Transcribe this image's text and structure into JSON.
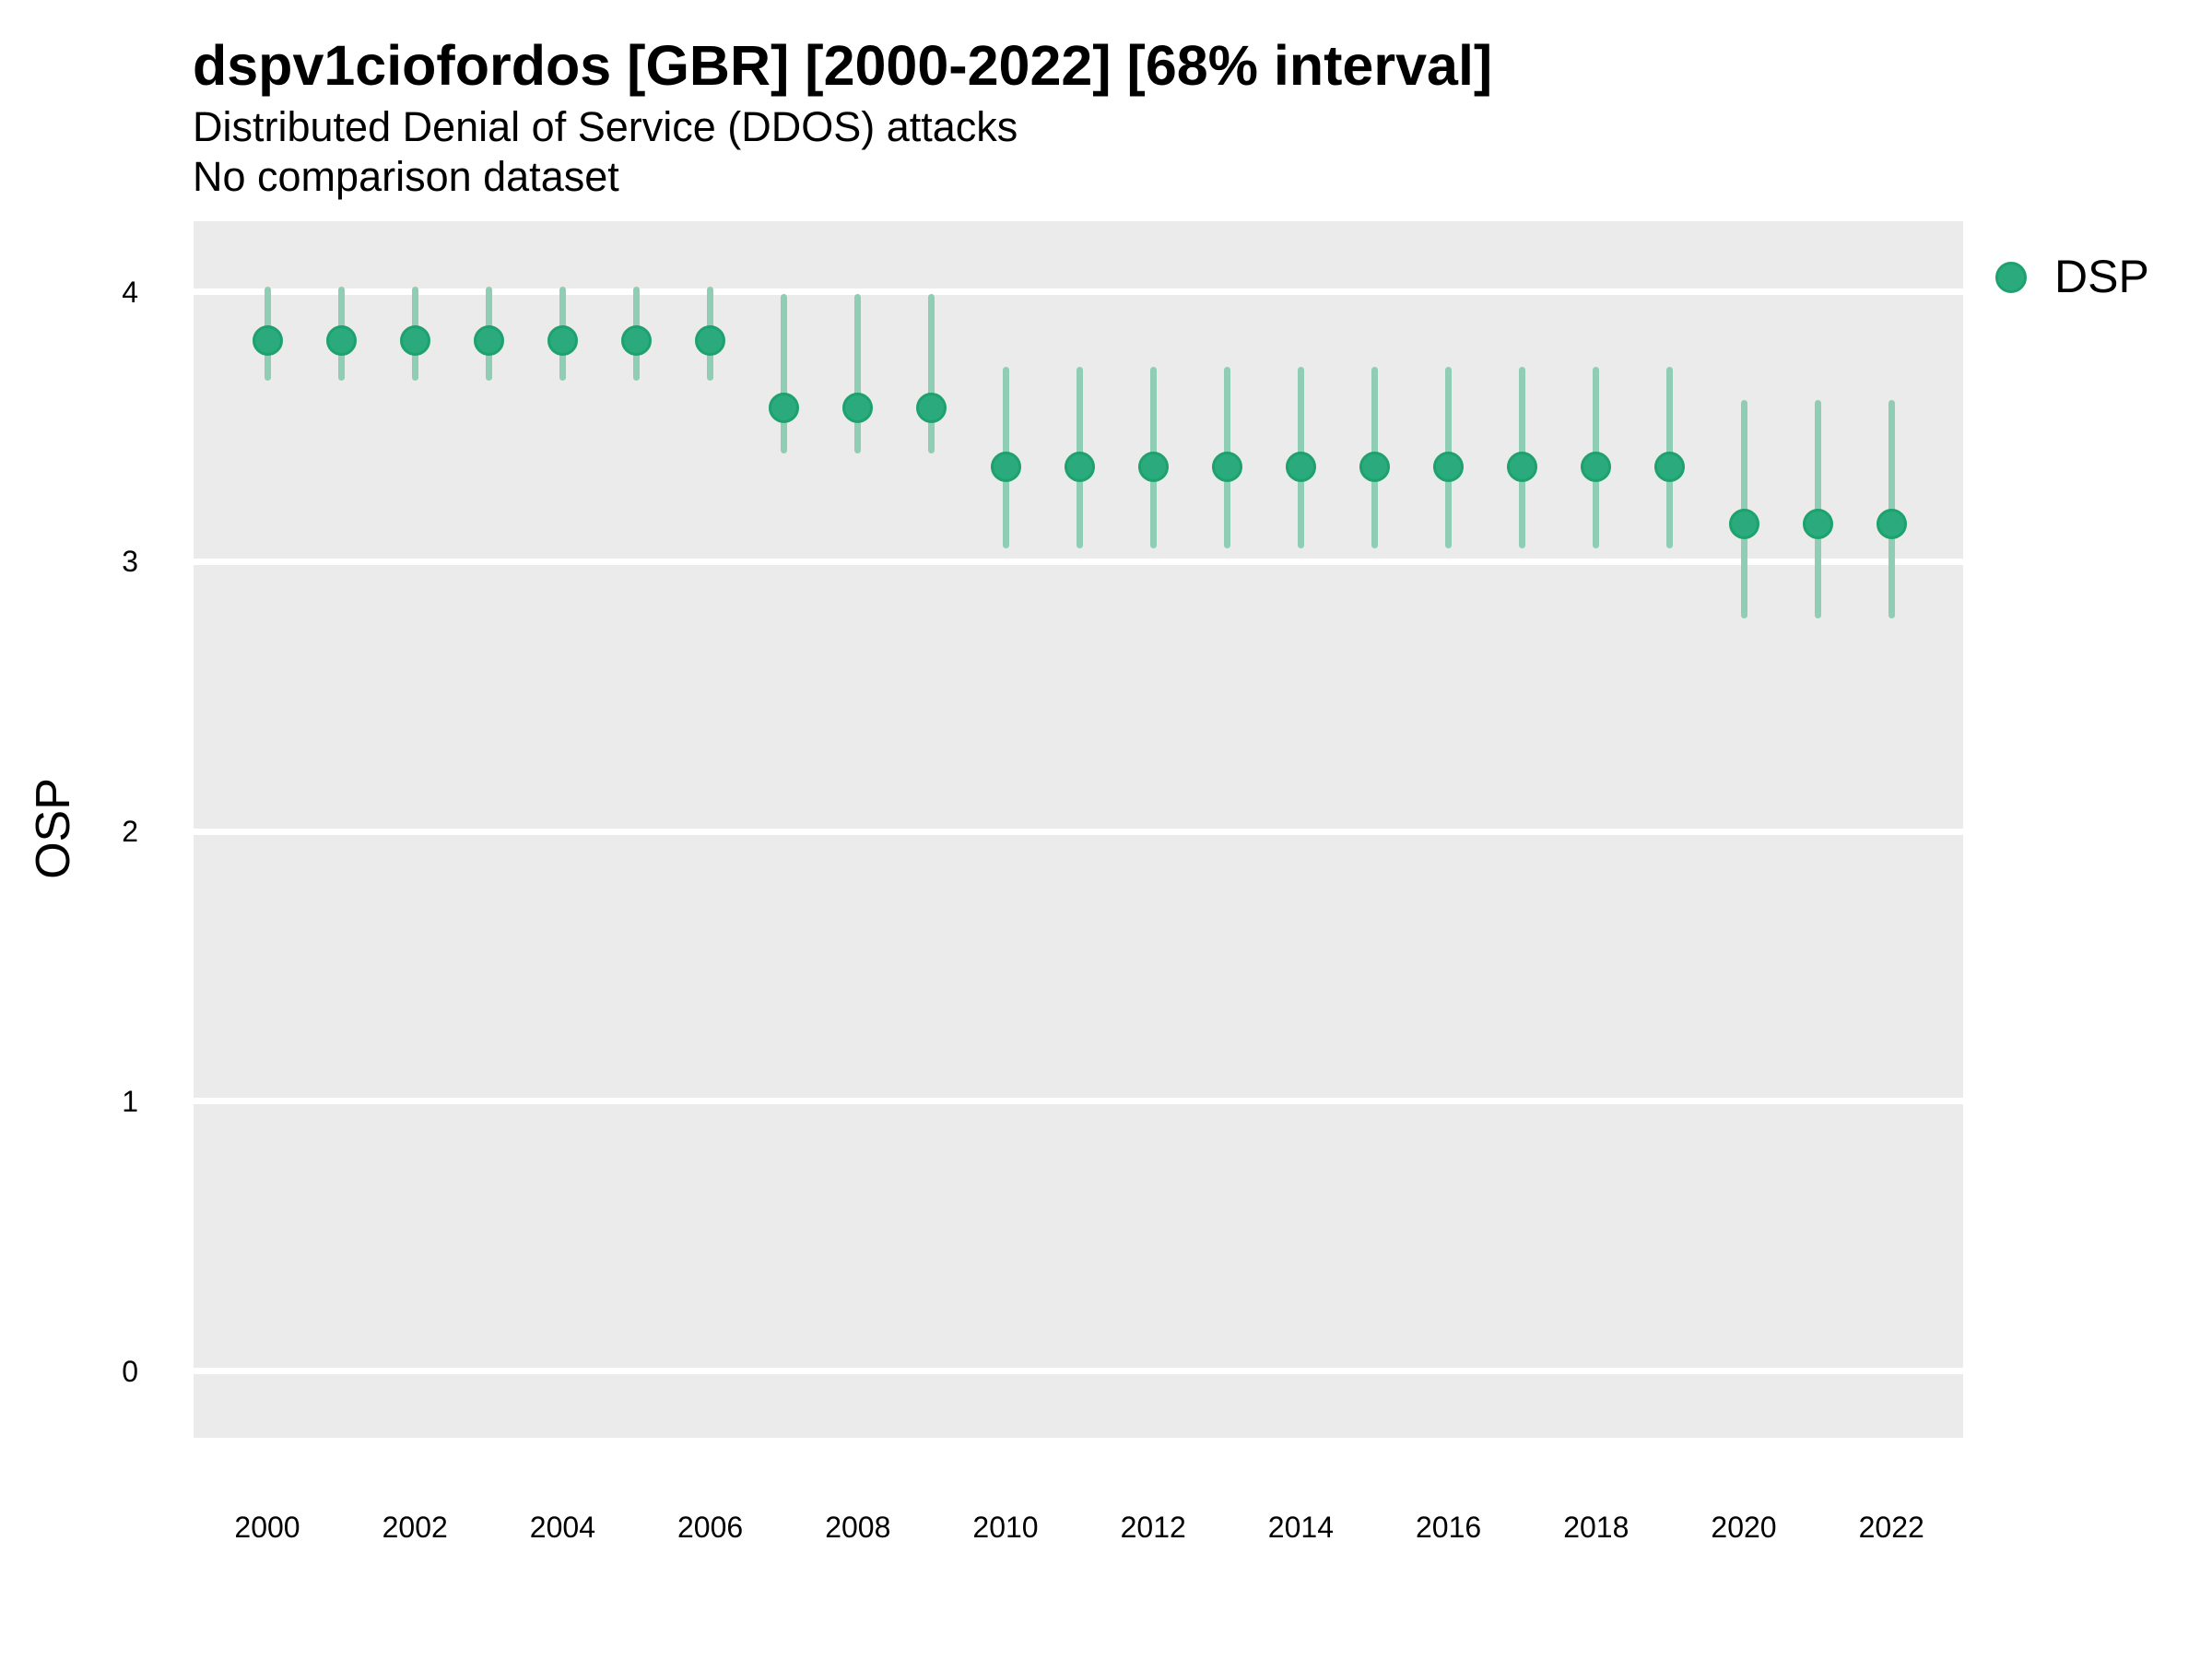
{
  "title": "dspv1ciofordos [GBR] [2000-2022] [68% interval]",
  "subtitle": "Distributed Denial of Service (DDOS) attacks",
  "comparison_note": "No comparison dataset",
  "y_axis": {
    "label": "OSP"
  },
  "legend": {
    "series_label": "DSP",
    "marker": "circle-icon"
  },
  "colors": {
    "point": "#2bab7d",
    "point_border": "#1da26e",
    "interval": "#8fceb4",
    "panel": "#ebebeb",
    "gridline": "#ffffff",
    "text": "#000000"
  },
  "chart_data": {
    "type": "scatter",
    "subtype": "pointrange",
    "title": "dspv1ciofordos [GBR] [2000-2022] [68% interval]",
    "subtitle": "Distributed Denial of Service (DDOS) attacks",
    "note": "No comparison dataset",
    "xlabel": "",
    "ylabel": "OSP",
    "legend_entries": [
      "DSP"
    ],
    "legend_position": "right",
    "grid": "horizontal-major-only",
    "interval_level": "68%",
    "x": [
      2000,
      2001,
      2002,
      2003,
      2004,
      2005,
      2006,
      2007,
      2008,
      2009,
      2010,
      2011,
      2012,
      2013,
      2014,
      2015,
      2016,
      2017,
      2018,
      2019,
      2020,
      2021,
      2022
    ],
    "series": [
      {
        "name": "DSP",
        "values": [
          3.82,
          3.82,
          3.82,
          3.82,
          3.82,
          3.82,
          3.82,
          3.57,
          3.57,
          3.57,
          3.35,
          3.35,
          3.35,
          3.35,
          3.35,
          3.35,
          3.35,
          3.35,
          3.35,
          3.35,
          3.14,
          3.14,
          3.14
        ],
        "lower_68": [
          3.67,
          3.67,
          3.67,
          3.67,
          3.67,
          3.67,
          3.67,
          3.4,
          3.4,
          3.4,
          3.05,
          3.05,
          3.05,
          3.05,
          3.05,
          3.05,
          3.05,
          3.05,
          3.05,
          3.05,
          2.79,
          2.79,
          2.79
        ],
        "upper_68": [
          4.02,
          4.02,
          4.02,
          4.02,
          4.02,
          4.02,
          4.02,
          3.99,
          3.99,
          3.99,
          3.72,
          3.72,
          3.72,
          3.72,
          3.72,
          3.72,
          3.72,
          3.72,
          3.72,
          3.72,
          3.6,
          3.6,
          3.6
        ]
      }
    ],
    "x_ticks": [
      2000,
      2002,
      2004,
      2006,
      2008,
      2010,
      2012,
      2014,
      2016,
      2018,
      2020,
      2022
    ],
    "y_ticks": [
      4,
      3,
      2,
      1,
      0
    ],
    "ylim": [
      -0.26,
      4.26
    ],
    "xlim": [
      1999,
      2023
    ]
  }
}
